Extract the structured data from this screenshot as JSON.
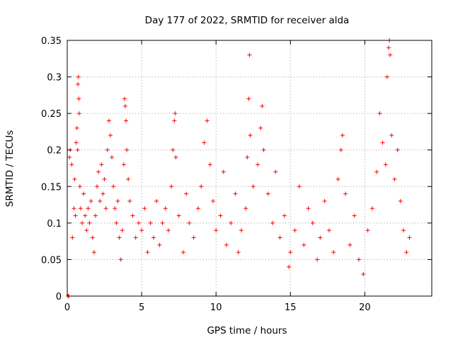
{
  "chart_data": {
    "type": "scatter",
    "title": "Day 177 of 2022, SRMTID for receiver alda",
    "xlabel": "GPS time / hours",
    "ylabel": "SRMTID / TECUs",
    "xlim": [
      0,
      24.5
    ],
    "ylim": [
      0,
      0.35
    ],
    "x_ticks": [
      0,
      5,
      10,
      15,
      20
    ],
    "x_tick_labels": [
      "0",
      "5",
      "10",
      "15",
      "20"
    ],
    "y_ticks": [
      0,
      0.05,
      0.1,
      0.15,
      0.2,
      0.25,
      0.3,
      0.35
    ],
    "y_tick_labels": [
      "0",
      "0.05",
      "0.1",
      "0.15",
      "0.2",
      "0.25",
      "0.3",
      "0.35"
    ],
    "grid": true,
    "marker": "plus",
    "marker_color": "#ff0000",
    "series": [
      {
        "name": "SRMTID",
        "points": [
          [
            0.05,
            0.0
          ],
          [
            0.1,
            0.0
          ],
          [
            0.15,
            0.19
          ],
          [
            0.2,
            0.2
          ],
          [
            0.3,
            0.18
          ],
          [
            0.35,
            0.08
          ],
          [
            0.45,
            0.12
          ],
          [
            0.5,
            0.16
          ],
          [
            0.55,
            0.11
          ],
          [
            0.6,
            0.21
          ],
          [
            0.65,
            0.23
          ],
          [
            0.7,
            0.2
          ],
          [
            0.72,
            0.29
          ],
          [
            0.75,
            0.3
          ],
          [
            0.78,
            0.27
          ],
          [
            0.8,
            0.25
          ],
          [
            0.85,
            0.15
          ],
          [
            0.9,
            0.12
          ],
          [
            1.0,
            0.1
          ],
          [
            1.1,
            0.14
          ],
          [
            1.2,
            0.11
          ],
          [
            1.3,
            0.09
          ],
          [
            1.4,
            0.12
          ],
          [
            1.5,
            0.1
          ],
          [
            1.6,
            0.13
          ],
          [
            1.7,
            0.08
          ],
          [
            1.8,
            0.06
          ],
          [
            1.9,
            0.11
          ],
          [
            2.0,
            0.15
          ],
          [
            2.1,
            0.17
          ],
          [
            2.2,
            0.13
          ],
          [
            2.3,
            0.18
          ],
          [
            2.4,
            0.14
          ],
          [
            2.5,
            0.16
          ],
          [
            2.6,
            0.12
          ],
          [
            2.7,
            0.2
          ],
          [
            2.8,
            0.24
          ],
          [
            2.9,
            0.22
          ],
          [
            3.0,
            0.19
          ],
          [
            3.1,
            0.15
          ],
          [
            3.2,
            0.12
          ],
          [
            3.3,
            0.1
          ],
          [
            3.4,
            0.13
          ],
          [
            3.5,
            0.08
          ],
          [
            3.6,
            0.05
          ],
          [
            3.7,
            0.09
          ],
          [
            3.8,
            0.18
          ],
          [
            3.85,
            0.27
          ],
          [
            3.9,
            0.26
          ],
          [
            3.95,
            0.24
          ],
          [
            4.0,
            0.2
          ],
          [
            4.1,
            0.16
          ],
          [
            4.2,
            0.13
          ],
          [
            4.4,
            0.11
          ],
          [
            4.6,
            0.08
          ],
          [
            4.8,
            0.1
          ],
          [
            5.0,
            0.09
          ],
          [
            5.2,
            0.12
          ],
          [
            5.4,
            0.06
          ],
          [
            5.6,
            0.1
          ],
          [
            5.8,
            0.08
          ],
          [
            6.0,
            0.13
          ],
          [
            6.2,
            0.07
          ],
          [
            6.4,
            0.1
          ],
          [
            6.6,
            0.12
          ],
          [
            6.8,
            0.09
          ],
          [
            7.0,
            0.15
          ],
          [
            7.1,
            0.2
          ],
          [
            7.2,
            0.24
          ],
          [
            7.25,
            0.25
          ],
          [
            7.3,
            0.19
          ],
          [
            7.5,
            0.11
          ],
          [
            7.8,
            0.06
          ],
          [
            8.0,
            0.14
          ],
          [
            8.2,
            0.1
          ],
          [
            8.5,
            0.08
          ],
          [
            8.8,
            0.12
          ],
          [
            9.0,
            0.15
          ],
          [
            9.2,
            0.21
          ],
          [
            9.4,
            0.24
          ],
          [
            9.6,
            0.18
          ],
          [
            9.8,
            0.13
          ],
          [
            10.0,
            0.09
          ],
          [
            10.3,
            0.11
          ],
          [
            10.5,
            0.17
          ],
          [
            10.7,
            0.07
          ],
          [
            11.0,
            0.1
          ],
          [
            11.3,
            0.14
          ],
          [
            11.5,
            0.06
          ],
          [
            11.7,
            0.09
          ],
          [
            12.0,
            0.12
          ],
          [
            12.1,
            0.19
          ],
          [
            12.2,
            0.27
          ],
          [
            12.25,
            0.33
          ],
          [
            12.3,
            0.22
          ],
          [
            12.5,
            0.15
          ],
          [
            12.8,
            0.18
          ],
          [
            13.0,
            0.23
          ],
          [
            13.1,
            0.26
          ],
          [
            13.2,
            0.2
          ],
          [
            13.5,
            0.14
          ],
          [
            13.8,
            0.1
          ],
          [
            14.0,
            0.17
          ],
          [
            14.3,
            0.08
          ],
          [
            14.6,
            0.11
          ],
          [
            14.9,
            0.04
          ],
          [
            15.0,
            0.06
          ],
          [
            15.3,
            0.09
          ],
          [
            15.6,
            0.15
          ],
          [
            15.9,
            0.07
          ],
          [
            16.2,
            0.12
          ],
          [
            16.5,
            0.1
          ],
          [
            16.8,
            0.05
          ],
          [
            17.0,
            0.08
          ],
          [
            17.3,
            0.13
          ],
          [
            17.6,
            0.09
          ],
          [
            17.9,
            0.06
          ],
          [
            18.2,
            0.16
          ],
          [
            18.4,
            0.2
          ],
          [
            18.5,
            0.22
          ],
          [
            18.7,
            0.14
          ],
          [
            19.0,
            0.07
          ],
          [
            19.3,
            0.11
          ],
          [
            19.6,
            0.05
          ],
          [
            19.9,
            0.03
          ],
          [
            20.2,
            0.09
          ],
          [
            20.5,
            0.12
          ],
          [
            20.8,
            0.17
          ],
          [
            21.0,
            0.25
          ],
          [
            21.2,
            0.21
          ],
          [
            21.4,
            0.18
          ],
          [
            21.5,
            0.3
          ],
          [
            21.6,
            0.34
          ],
          [
            21.65,
            0.35
          ],
          [
            21.7,
            0.33
          ],
          [
            21.8,
            0.22
          ],
          [
            22.0,
            0.16
          ],
          [
            22.2,
            0.2
          ],
          [
            22.4,
            0.13
          ],
          [
            22.6,
            0.09
          ],
          [
            22.8,
            0.06
          ],
          [
            23.0,
            0.08
          ]
        ]
      }
    ]
  }
}
